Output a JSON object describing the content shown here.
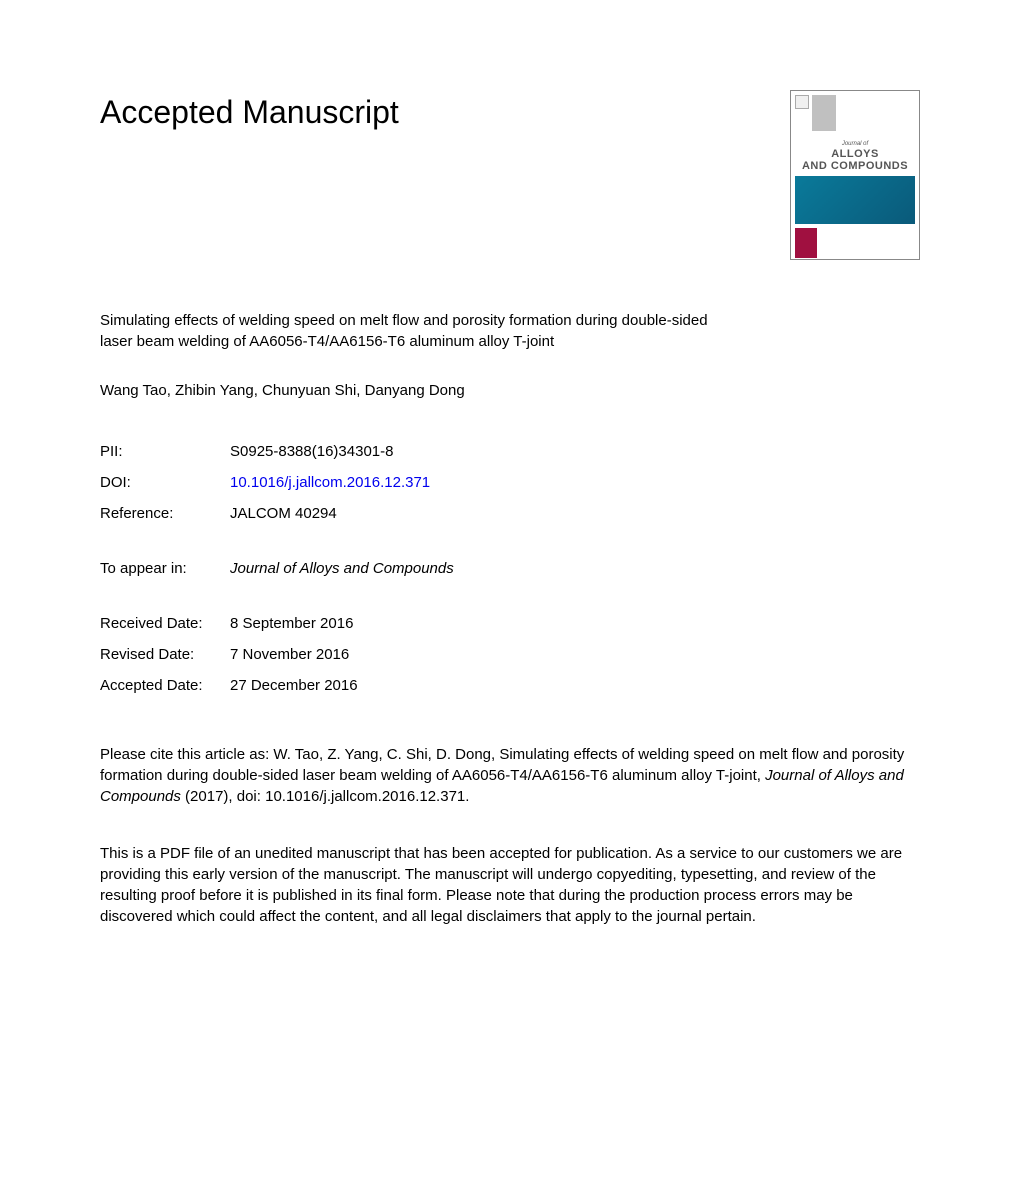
{
  "header": {
    "title": "Accepted Manuscript"
  },
  "journal_cover": {
    "journal_of": "Journal of",
    "name_line1": "ALLOYS",
    "name_line2": "AND COMPOUNDS",
    "colors": {
      "teal": "#0a7a9a",
      "red": "#a01040",
      "gray": "#c0c0c0"
    }
  },
  "article": {
    "title": "Simulating effects of welding speed on melt flow and porosity formation during double-sided laser beam welding of AA6056-T4/AA6156-T6 aluminum alloy T-joint",
    "authors": "Wang Tao, Zhibin Yang, Chunyuan Shi, Danyang Dong"
  },
  "meta": {
    "pii_label": "PII:",
    "pii_value": "S0925-8388(16)34301-8",
    "doi_label": "DOI:",
    "doi_value": "10.1016/j.jallcom.2016.12.371",
    "reference_label": "Reference:",
    "reference_value": "JALCOM 40294",
    "appear_label": "To appear in:",
    "appear_value": "Journal of Alloys and Compounds",
    "received_label": "Received Date:",
    "received_value": "8 September 2016",
    "revised_label": "Revised Date:",
    "revised_value": "7 November 2016",
    "accepted_label": "Accepted Date:",
    "accepted_value": "27 December 2016"
  },
  "citation": {
    "prefix": "Please cite this article as: W. Tao, Z. Yang, C. Shi, D. Dong, Simulating effects of welding speed on melt flow and porosity formation during double-sided laser beam welding of AA6056-T4/AA6156-T6 aluminum alloy T-joint, ",
    "journal": "Journal of Alloys and Compounds",
    "suffix": " (2017), doi: 10.1016/j.jallcom.2016.12.371."
  },
  "disclaimer": {
    "text": "This is a PDF file of an unedited manuscript that has been accepted for publication. As a service to our customers we are providing this early version of the manuscript. The manuscript will undergo copyediting, typesetting, and review of the resulting proof before it is published in its final form. Please note that during the production process errors may be discovered which could affect the content, and all legal disclaimers that apply to the journal pertain."
  }
}
